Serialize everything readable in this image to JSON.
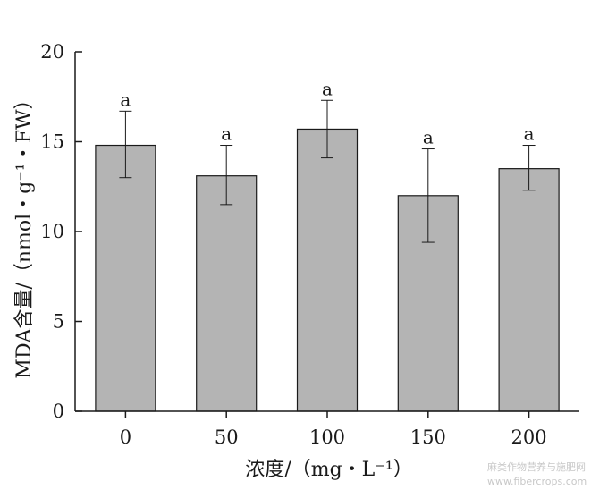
{
  "chart_data": {
    "type": "bar",
    "categories": [
      "0",
      "50",
      "100",
      "150",
      "200"
    ],
    "values": [
      14.8,
      13.1,
      15.7,
      12.0,
      13.5
    ],
    "error_high": [
      16.7,
      14.8,
      17.3,
      14.6,
      14.8
    ],
    "error_low": [
      13.0,
      11.5,
      14.1,
      9.4,
      12.3
    ],
    "significance_labels": [
      "a",
      "a",
      "a",
      "a",
      "a"
    ],
    "xlabel": "浓度/（mg・L⁻¹）",
    "ylabel": "MDA含量/（nmol・g⁻¹・FW）",
    "ylim": [
      0,
      20
    ],
    "yticks": [
      "0",
      "5",
      "10",
      "15",
      "20"
    ],
    "grid": false,
    "bar_color": "#b4b4b4",
    "edge_color": "#1a1a1a"
  },
  "watermark": {
    "line1": "麻类作物营养与施肥网",
    "line2": "www.fibercrops.com"
  }
}
